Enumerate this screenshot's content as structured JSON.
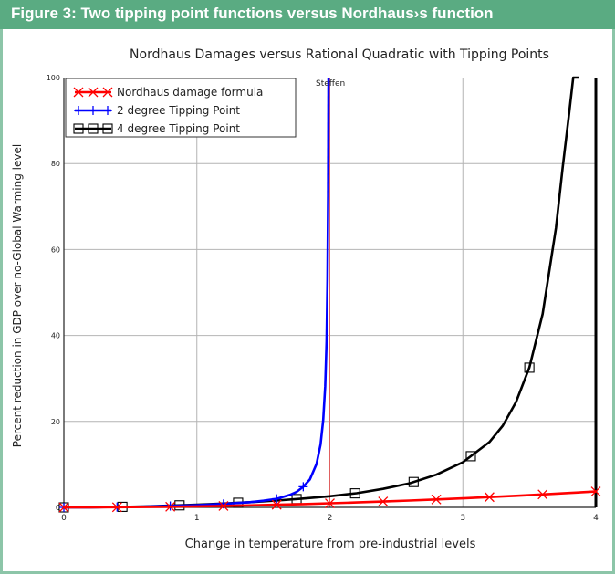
{
  "figure": {
    "title": "Figure 3: Two tipping point functions versus Nordhaus›s function",
    "header_color": "#5aab82",
    "border_color": "#8cc5a8"
  },
  "chart_data": {
    "type": "line",
    "title": "Nordhaus Damages versus Rational Quadratic with Tipping Points",
    "xlabel": "Change in temperature from pre-industrial levels",
    "ylabel": "Percent reduction in GDP over no-Global Warming level",
    "xlim": [
      0,
      4
    ],
    "ylim": [
      0,
      100
    ],
    "x_ticks": [
      0,
      1,
      2,
      3,
      4
    ],
    "x_tick_labels": [
      "0",
      "1",
      "2",
      "3",
      "4"
    ],
    "y_ticks": [
      0,
      20,
      40,
      60,
      80,
      100
    ],
    "y_tick_labels": [
      "0",
      "20",
      "40",
      "60",
      "80",
      "100"
    ],
    "grid": true,
    "legend_position": "top-left",
    "annotation": {
      "text": "Steffen",
      "x": 2
    },
    "series": [
      {
        "name": "Nordhaus damage formula",
        "color": "#ff0000",
        "marker": "x",
        "x": [
          0,
          0.2,
          0.4,
          0.6,
          0.8,
          1.0,
          1.2,
          1.4,
          1.6,
          1.8,
          2.0,
          2.2,
          2.4,
          2.6,
          2.8,
          3.0,
          3.2,
          3.4,
          3.6,
          3.8,
          4.0
        ],
        "values": [
          0,
          0.01,
          0.04,
          0.09,
          0.15,
          0.24,
          0.34,
          0.46,
          0.61,
          0.77,
          0.95,
          1.14,
          1.36,
          1.59,
          1.84,
          2.11,
          2.39,
          2.7,
          3.02,
          3.35,
          3.7
        ],
        "marker_x": [
          0,
          0.4,
          0.8,
          1.2,
          1.6,
          2.0,
          2.4,
          2.8,
          3.2,
          3.6,
          4.0
        ]
      },
      {
        "name": "2 degree Tipping Point",
        "color": "#0000ff",
        "marker": "+",
        "x": [
          0,
          0.2,
          0.4,
          0.6,
          0.8,
          1.0,
          1.2,
          1.4,
          1.5,
          1.6,
          1.7,
          1.75,
          1.8,
          1.85,
          1.9,
          1.93,
          1.95,
          1.965,
          1.975,
          1.982,
          1.987
        ],
        "values": [
          0,
          0.02,
          0.08,
          0.18,
          0.33,
          0.53,
          0.8,
          1.2,
          1.55,
          2.0,
          2.9,
          3.6,
          4.8,
          6.5,
          10.1,
          14.6,
          20.3,
          28.2,
          38.6,
          53.0,
          72.3
        ],
        "marker_x": [
          0,
          0.4,
          0.8,
          1.2,
          1.6,
          1.8
        ]
      },
      {
        "name": "4 degree Tipping Point",
        "color": "#000000",
        "marker": "square",
        "x": [
          0,
          0.2,
          0.4,
          0.6,
          0.8,
          1.0,
          1.2,
          1.4,
          1.6,
          1.8,
          2.0,
          2.2,
          2.4,
          2.6,
          2.8,
          3.0,
          3.2,
          3.3,
          3.4,
          3.5,
          3.6,
          3.7,
          3.75,
          3.8,
          3.83,
          3.87
        ],
        "values": [
          0,
          0.03,
          0.1,
          0.22,
          0.4,
          0.62,
          0.9,
          1.22,
          1.6,
          2.05,
          2.6,
          3.3,
          4.3,
          5.6,
          7.6,
          10.5,
          15.2,
          19.0,
          24.5,
          32.5,
          45.0,
          65.0,
          79.0,
          92.0,
          100.0,
          100.0
        ],
        "marker_x": [
          0,
          0.44,
          0.87,
          1.31,
          1.75,
          2.19,
          2.63,
          3.06,
          3.5
        ]
      }
    ]
  }
}
